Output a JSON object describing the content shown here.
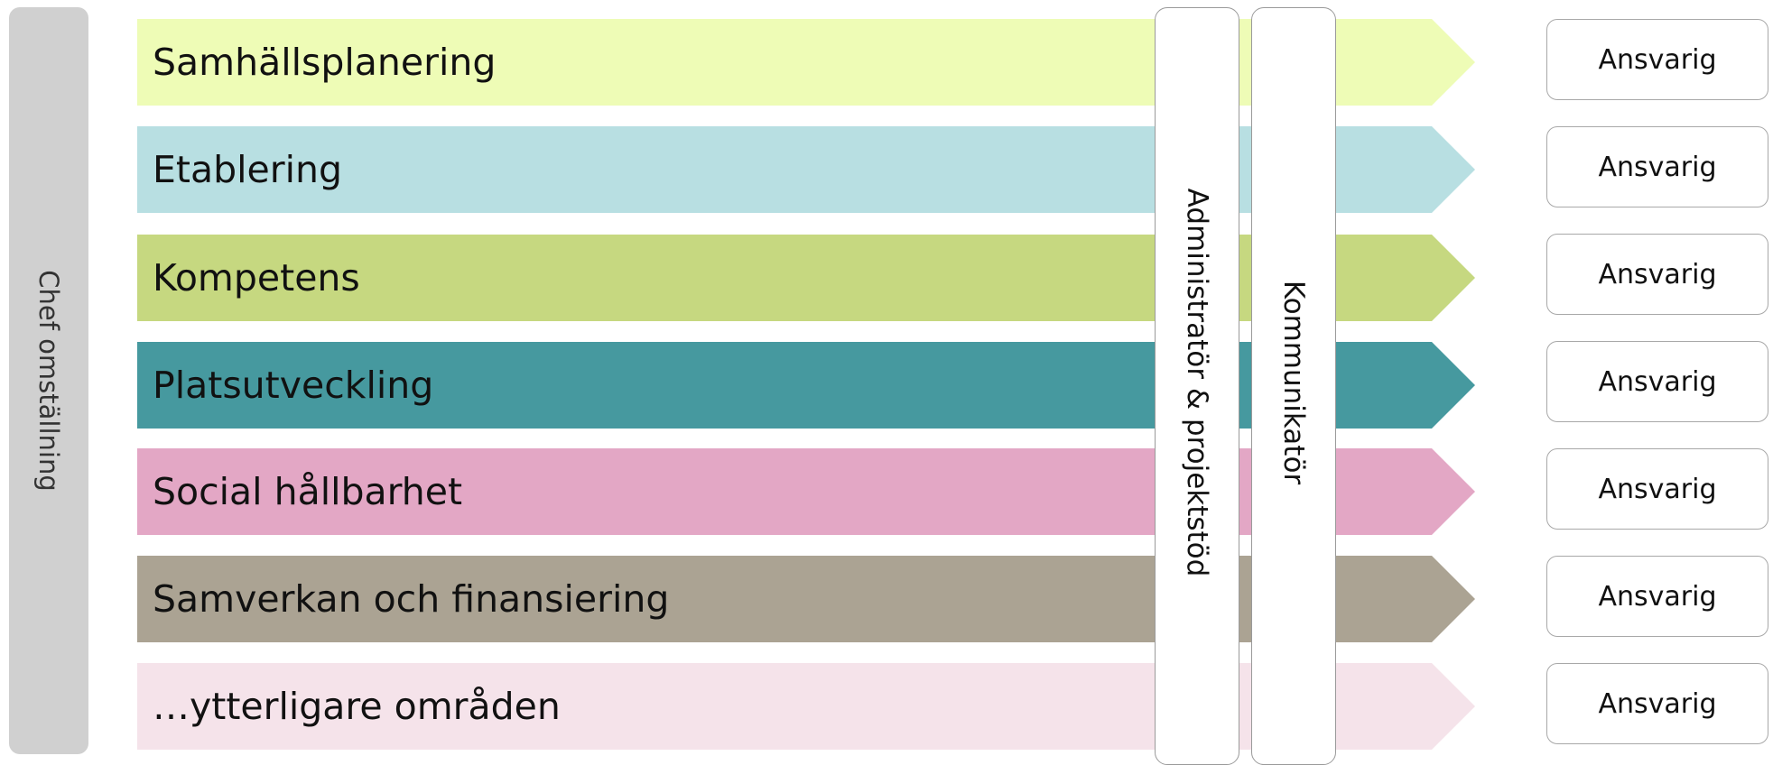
{
  "chef": {
    "label": "Chef omställning",
    "color": "#d0d0d0"
  },
  "areas": [
    {
      "label": "Samhällsplanering",
      "color": "#eefcb6"
    },
    {
      "label": "Etablering",
      "color": "#b8dfe2"
    },
    {
      "label": "Kompetens",
      "color": "#c6d880"
    },
    {
      "label": "Platsutveckling",
      "color": "#46999f"
    },
    {
      "label": "Social hållbarhet",
      "color": "#e3a7c5"
    },
    {
      "label": "Samverkan och finansiering",
      "color": "#aba393"
    },
    {
      "label": "…ytterligare områden",
      "color": "#f5e3ea"
    }
  ],
  "roles": {
    "administrator": "Administratör & projektstöd",
    "kommunikator": "Kommunikatör"
  },
  "responsible": [
    {
      "label": "Ansvarig"
    },
    {
      "label": "Ansvarig"
    },
    {
      "label": "Ansvarig"
    },
    {
      "label": "Ansvarig"
    },
    {
      "label": "Ansvarig"
    },
    {
      "label": "Ansvarig"
    },
    {
      "label": "Ansvarig"
    }
  ]
}
